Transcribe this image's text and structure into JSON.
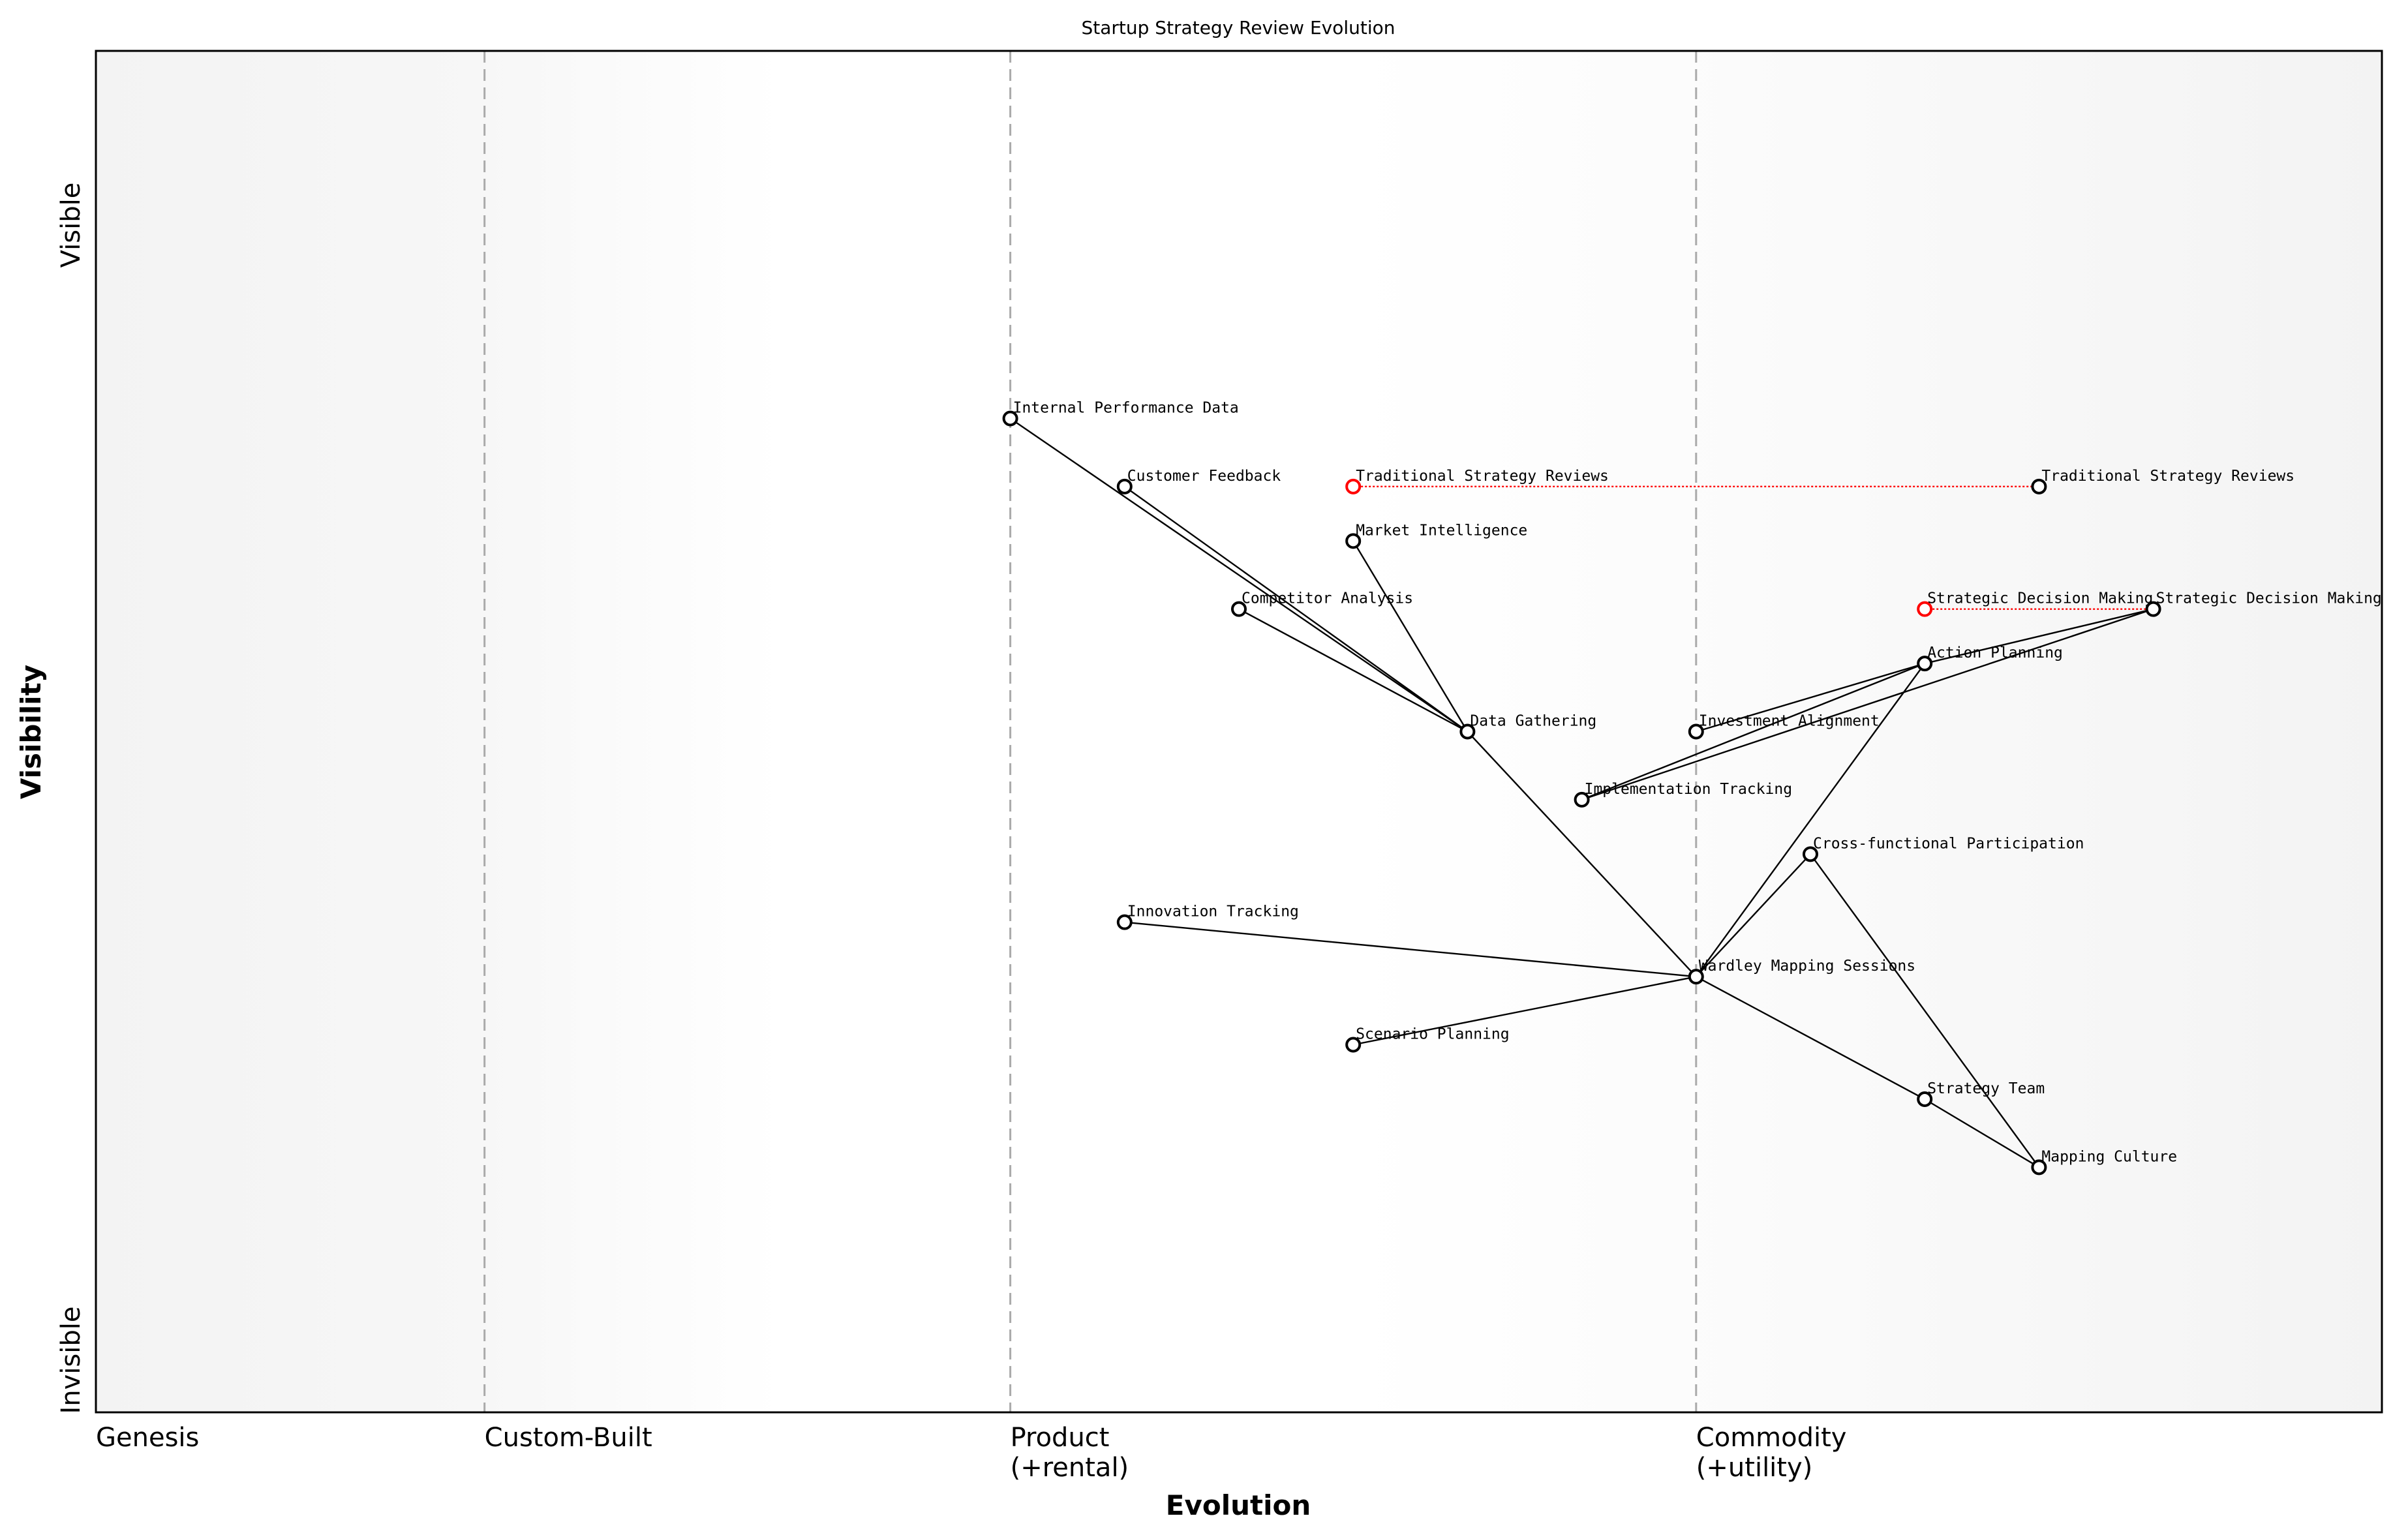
{
  "chart_data": {
    "type": "wardley-map",
    "title": "Startup Strategy Review Evolution",
    "xlabel": "Evolution",
    "ylabel": "Visibility",
    "xlim": [
      0,
      1
    ],
    "ylim": [
      0,
      1
    ],
    "y_extremes": {
      "top": "Visible",
      "bottom": "Invisible"
    },
    "stages": [
      {
        "label": "Genesis",
        "x": 0.0
      },
      {
        "label": "Custom-Built",
        "x": 0.17
      },
      {
        "label": "Product\n(+rental)",
        "x": 0.4
      },
      {
        "label": "Commodity\n(+utility)",
        "x": 0.7
      }
    ],
    "nodes": [
      {
        "id": "ipd",
        "label": "Internal Performance Data",
        "x": 0.4,
        "y": 0.73
      },
      {
        "id": "cf",
        "label": "Customer Feedback",
        "x": 0.45,
        "y": 0.68
      },
      {
        "id": "tsr",
        "label": "Traditional Strategy Reviews",
        "x": 0.55,
        "y": 0.68,
        "inertia": true
      },
      {
        "id": "mi",
        "label": "Market Intelligence",
        "x": 0.55,
        "y": 0.64
      },
      {
        "id": "ca",
        "label": "Competitor Analysis",
        "x": 0.5,
        "y": 0.59
      },
      {
        "id": "sdm",
        "label": "Strategic Decision Making",
        "x": 0.8,
        "y": 0.59,
        "inertia": true
      },
      {
        "id": "ap",
        "label": "Action Planning",
        "x": 0.8,
        "y": 0.55
      },
      {
        "id": "dg",
        "label": "Data Gathering",
        "x": 0.6,
        "y": 0.5
      },
      {
        "id": "ia",
        "label": "Investment Alignment",
        "x": 0.7,
        "y": 0.5
      },
      {
        "id": "it",
        "label": "Implementation Tracking",
        "x": 0.65,
        "y": 0.45
      },
      {
        "id": "cfp",
        "label": "Cross-functional Participation",
        "x": 0.75,
        "y": 0.41
      },
      {
        "id": "int",
        "label": "Innovation Tracking",
        "x": 0.45,
        "y": 0.36
      },
      {
        "id": "wms",
        "label": "Wardley Mapping Sessions",
        "x": 0.7,
        "y": 0.32
      },
      {
        "id": "sp",
        "label": "Scenario Planning",
        "x": 0.55,
        "y": 0.27
      },
      {
        "id": "st",
        "label": "Strategy Team",
        "x": 0.8,
        "y": 0.23
      },
      {
        "id": "mc",
        "label": "Mapping Culture",
        "x": 0.85,
        "y": 0.18
      },
      {
        "id": "tsr2",
        "label": "Traditional Strategy Reviews",
        "x": 0.85,
        "y": 0.68
      },
      {
        "id": "sdm2",
        "label": "Strategic Decision Making",
        "x": 0.9,
        "y": 0.59
      }
    ],
    "edges": [
      [
        "ipd",
        "dg"
      ],
      [
        "cf",
        "dg"
      ],
      [
        "mi",
        "dg"
      ],
      [
        "ca",
        "dg"
      ],
      [
        "dg",
        "wms"
      ],
      [
        "int",
        "wms"
      ],
      [
        "sp",
        "wms"
      ],
      [
        "wms",
        "cfp"
      ],
      [
        "wms",
        "ap"
      ],
      [
        "wms",
        "st"
      ],
      [
        "st",
        "mc"
      ],
      [
        "cfp",
        "mc"
      ],
      [
        "ia",
        "ap"
      ],
      [
        "ap",
        "sdm2"
      ],
      [
        "it",
        "ap"
      ],
      [
        "it",
        "sdm2"
      ]
    ],
    "evolutions": [
      [
        "tsr",
        "tsr2"
      ],
      [
        "sdm",
        "sdm2"
      ]
    ],
    "colors": {
      "node": "#000000",
      "inertia": "#ff0000",
      "evolution_line": "#ff0000",
      "stage_line": "#aaaaaa"
    }
  }
}
